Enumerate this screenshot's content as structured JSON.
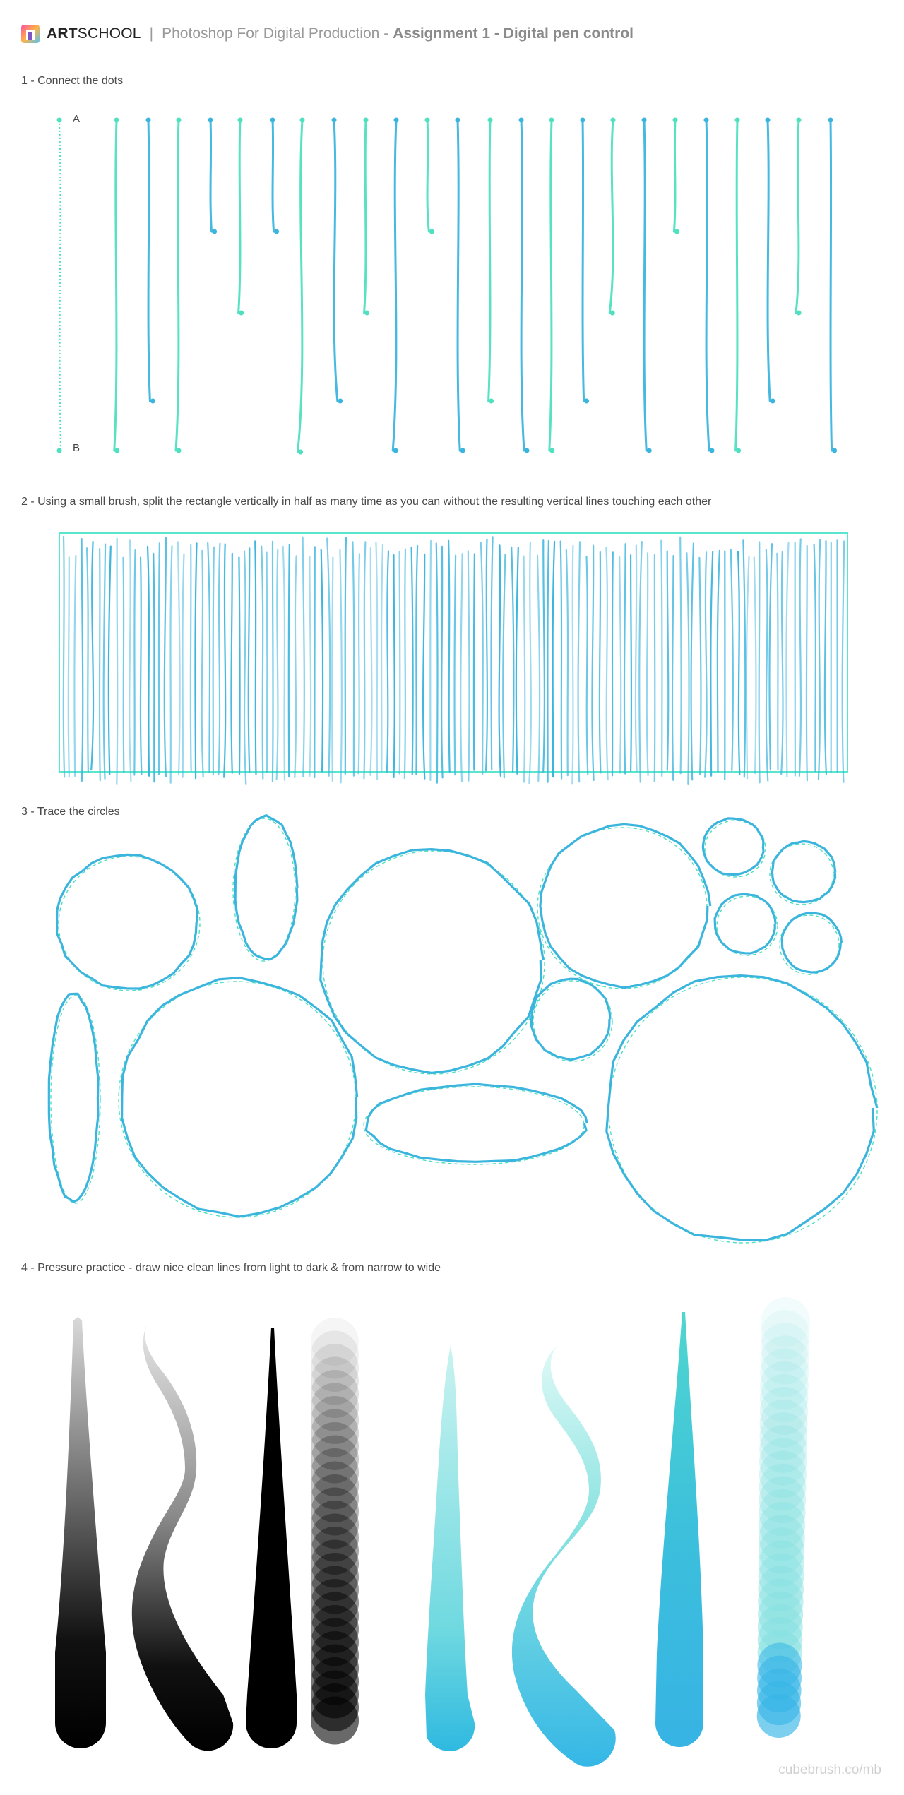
{
  "header": {
    "brand_bold": "ART",
    "brand_rest": "SCHOOL",
    "separator": "|",
    "course": "Photoshop For Digital Production",
    "dash": "-",
    "assignment": "Assignment 1 - Digital pen control"
  },
  "sections": {
    "s1": "1 - Connect the dots",
    "s2": "2 - Using a small brush, split the rectangle vertically in half as many time as you can without the resulting vertical lines touching each other",
    "s3": "3 - Trace the circles",
    "s4": "4 - Pressure practice - draw nice clean lines from light to dark & from narrow to wide"
  },
  "dots": {
    "label_a": "A",
    "label_b": "B"
  },
  "colors": {
    "teal": "#4fe0c0",
    "blue": "#3bb5de",
    "frame": "#59e6cc",
    "black": "#000000"
  },
  "footer": {
    "credit": "cubebrush.co/mb"
  }
}
